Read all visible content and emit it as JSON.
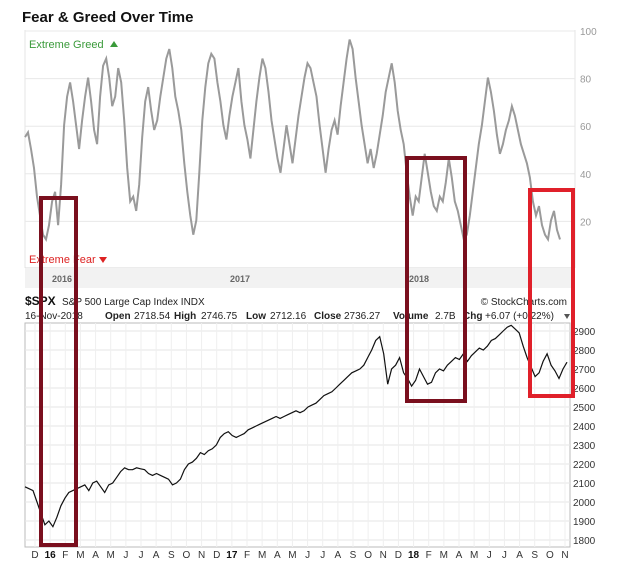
{
  "title": "Fear & Greed Over Time",
  "colors": {
    "greed": "#3a9a3a",
    "fear": "#d22",
    "fg_line": "#9a9a9a",
    "price_line": "#111111",
    "box_dark": "#7a0f1e",
    "box_red": "#e0202a"
  },
  "fear_greed": {
    "extreme_greed_label": "Extreme Greed",
    "extreme_fear_label": "Extreme Fear",
    "up_icon": "triangle-up-icon",
    "down_icon": "triangle-down-icon",
    "year_labels": [
      "2016",
      "2017",
      "2018"
    ]
  },
  "spx_header": {
    "symbol": "$SPX",
    "name": "S&P 500 Large Cap Index  INDX",
    "source": "© StockCharts.com",
    "date": "16-Nov-2018",
    "open_label": "Open",
    "open": "2718.54",
    "high_label": "High",
    "high": "2746.75",
    "low_label": "Low",
    "low": "2712.16",
    "close_label": "Close",
    "close": "2736.27",
    "volume_label": "Volume",
    "volume": "2.7B",
    "chg_label": "Chg",
    "chg": "+6.07 (+0.22%)"
  },
  "chart_data": [
    {
      "type": "line",
      "title": "Fear & Greed Over Time",
      "xlabel": "",
      "ylabel": "",
      "ylim": [
        0,
        100
      ],
      "yticks": [
        20,
        40,
        60,
        80,
        100
      ],
      "x_year_labels": [
        "2016",
        "2017",
        "2018"
      ],
      "x_range": [
        "2015-12",
        "2018-11"
      ],
      "grid": true,
      "series": [
        {
          "values": [
            55,
            57,
            50,
            42,
            30,
            22,
            14,
            12,
            18,
            28,
            32,
            18,
            35,
            60,
            72,
            78,
            70,
            60,
            50,
            62,
            72,
            80,
            70,
            58,
            52,
            72,
            85,
            88,
            80,
            68,
            72,
            84,
            78,
            62,
            42,
            28,
            30,
            24,
            35,
            55,
            70,
            76,
            66,
            58,
            62,
            72,
            80,
            88,
            92,
            84,
            72,
            66,
            58,
            44,
            32,
            22,
            14,
            20,
            40,
            62,
            76,
            86,
            90,
            88,
            78,
            70,
            60,
            54,
            64,
            72,
            78,
            84,
            70,
            60,
            54,
            46,
            58,
            70,
            80,
            88,
            84,
            74,
            62,
            54,
            46,
            40,
            50,
            60,
            52,
            44,
            54,
            64,
            72,
            80,
            86,
            84,
            78,
            72,
            60,
            50,
            40,
            50,
            58,
            62,
            56,
            68,
            78,
            88,
            96,
            92,
            80,
            70,
            60,
            52,
            44,
            50,
            42,
            48,
            56,
            64,
            74,
            80,
            86,
            78,
            66,
            58,
            52,
            40,
            30,
            22,
            30,
            28,
            38,
            48,
            40,
            32,
            26,
            24,
            30,
            28,
            36,
            46,
            38,
            28,
            24,
            18,
            12,
            14,
            22,
            32,
            42,
            52,
            60,
            70,
            80,
            74,
            66,
            56,
            48,
            52,
            58,
            62,
            68,
            64,
            58,
            52,
            48,
            44,
            38,
            28,
            22,
            26,
            18,
            14,
            12,
            20,
            24,
            16,
            12
          ]
        }
      ]
    },
    {
      "type": "line",
      "title": "$SPX S&P 500 Large Cap Index",
      "xlabel": "",
      "ylabel": "",
      "ylim": [
        1800,
        2950
      ],
      "yticks": [
        1800,
        1900,
        2000,
        2100,
        2200,
        2300,
        2400,
        2500,
        2600,
        2700,
        2800,
        2900
      ],
      "x_tick_labels": [
        "D",
        "16",
        "F",
        "M",
        "A",
        "M",
        "J",
        "J",
        "A",
        "S",
        "O",
        "N",
        "D",
        "17",
        "F",
        "M",
        "A",
        "M",
        "J",
        "J",
        "A",
        "S",
        "O",
        "N",
        "D",
        "18",
        "F",
        "M",
        "A",
        "M",
        "J",
        "J",
        "A",
        "S",
        "O",
        "N"
      ],
      "series": [
        {
          "name": "$SPX",
          "values": [
            2080,
            2070,
            2060,
            2000,
            1940,
            1880,
            1900,
            1870,
            1920,
            1980,
            2020,
            2050,
            2060,
            2070,
            2080,
            2090,
            2060,
            2100,
            2110,
            2080,
            2050,
            2090,
            2100,
            2130,
            2160,
            2180,
            2170,
            2170,
            2180,
            2175,
            2170,
            2150,
            2140,
            2150,
            2140,
            2130,
            2120,
            2090,
            2100,
            2120,
            2170,
            2200,
            2210,
            2230,
            2260,
            2250,
            2270,
            2280,
            2300,
            2340,
            2360,
            2370,
            2350,
            2340,
            2350,
            2360,
            2380,
            2390,
            2400,
            2410,
            2420,
            2430,
            2440,
            2450,
            2440,
            2450,
            2460,
            2470,
            2480,
            2470,
            2480,
            2500,
            2510,
            2520,
            2540,
            2560,
            2570,
            2580,
            2600,
            2620,
            2640,
            2660,
            2680,
            2690,
            2700,
            2720,
            2760,
            2800,
            2850,
            2870,
            2780,
            2620,
            2700,
            2720,
            2760,
            2680,
            2650,
            2610,
            2640,
            2700,
            2660,
            2620,
            2630,
            2680,
            2700,
            2690,
            2720,
            2740,
            2760,
            2750,
            2780,
            2740,
            2770,
            2790,
            2810,
            2800,
            2820,
            2850,
            2860,
            2880,
            2900,
            2920,
            2930,
            2910,
            2890,
            2820,
            2760,
            2710,
            2660,
            2680,
            2740,
            2780,
            2720,
            2690,
            2650,
            2700,
            2736
          ]
        }
      ]
    }
  ]
}
